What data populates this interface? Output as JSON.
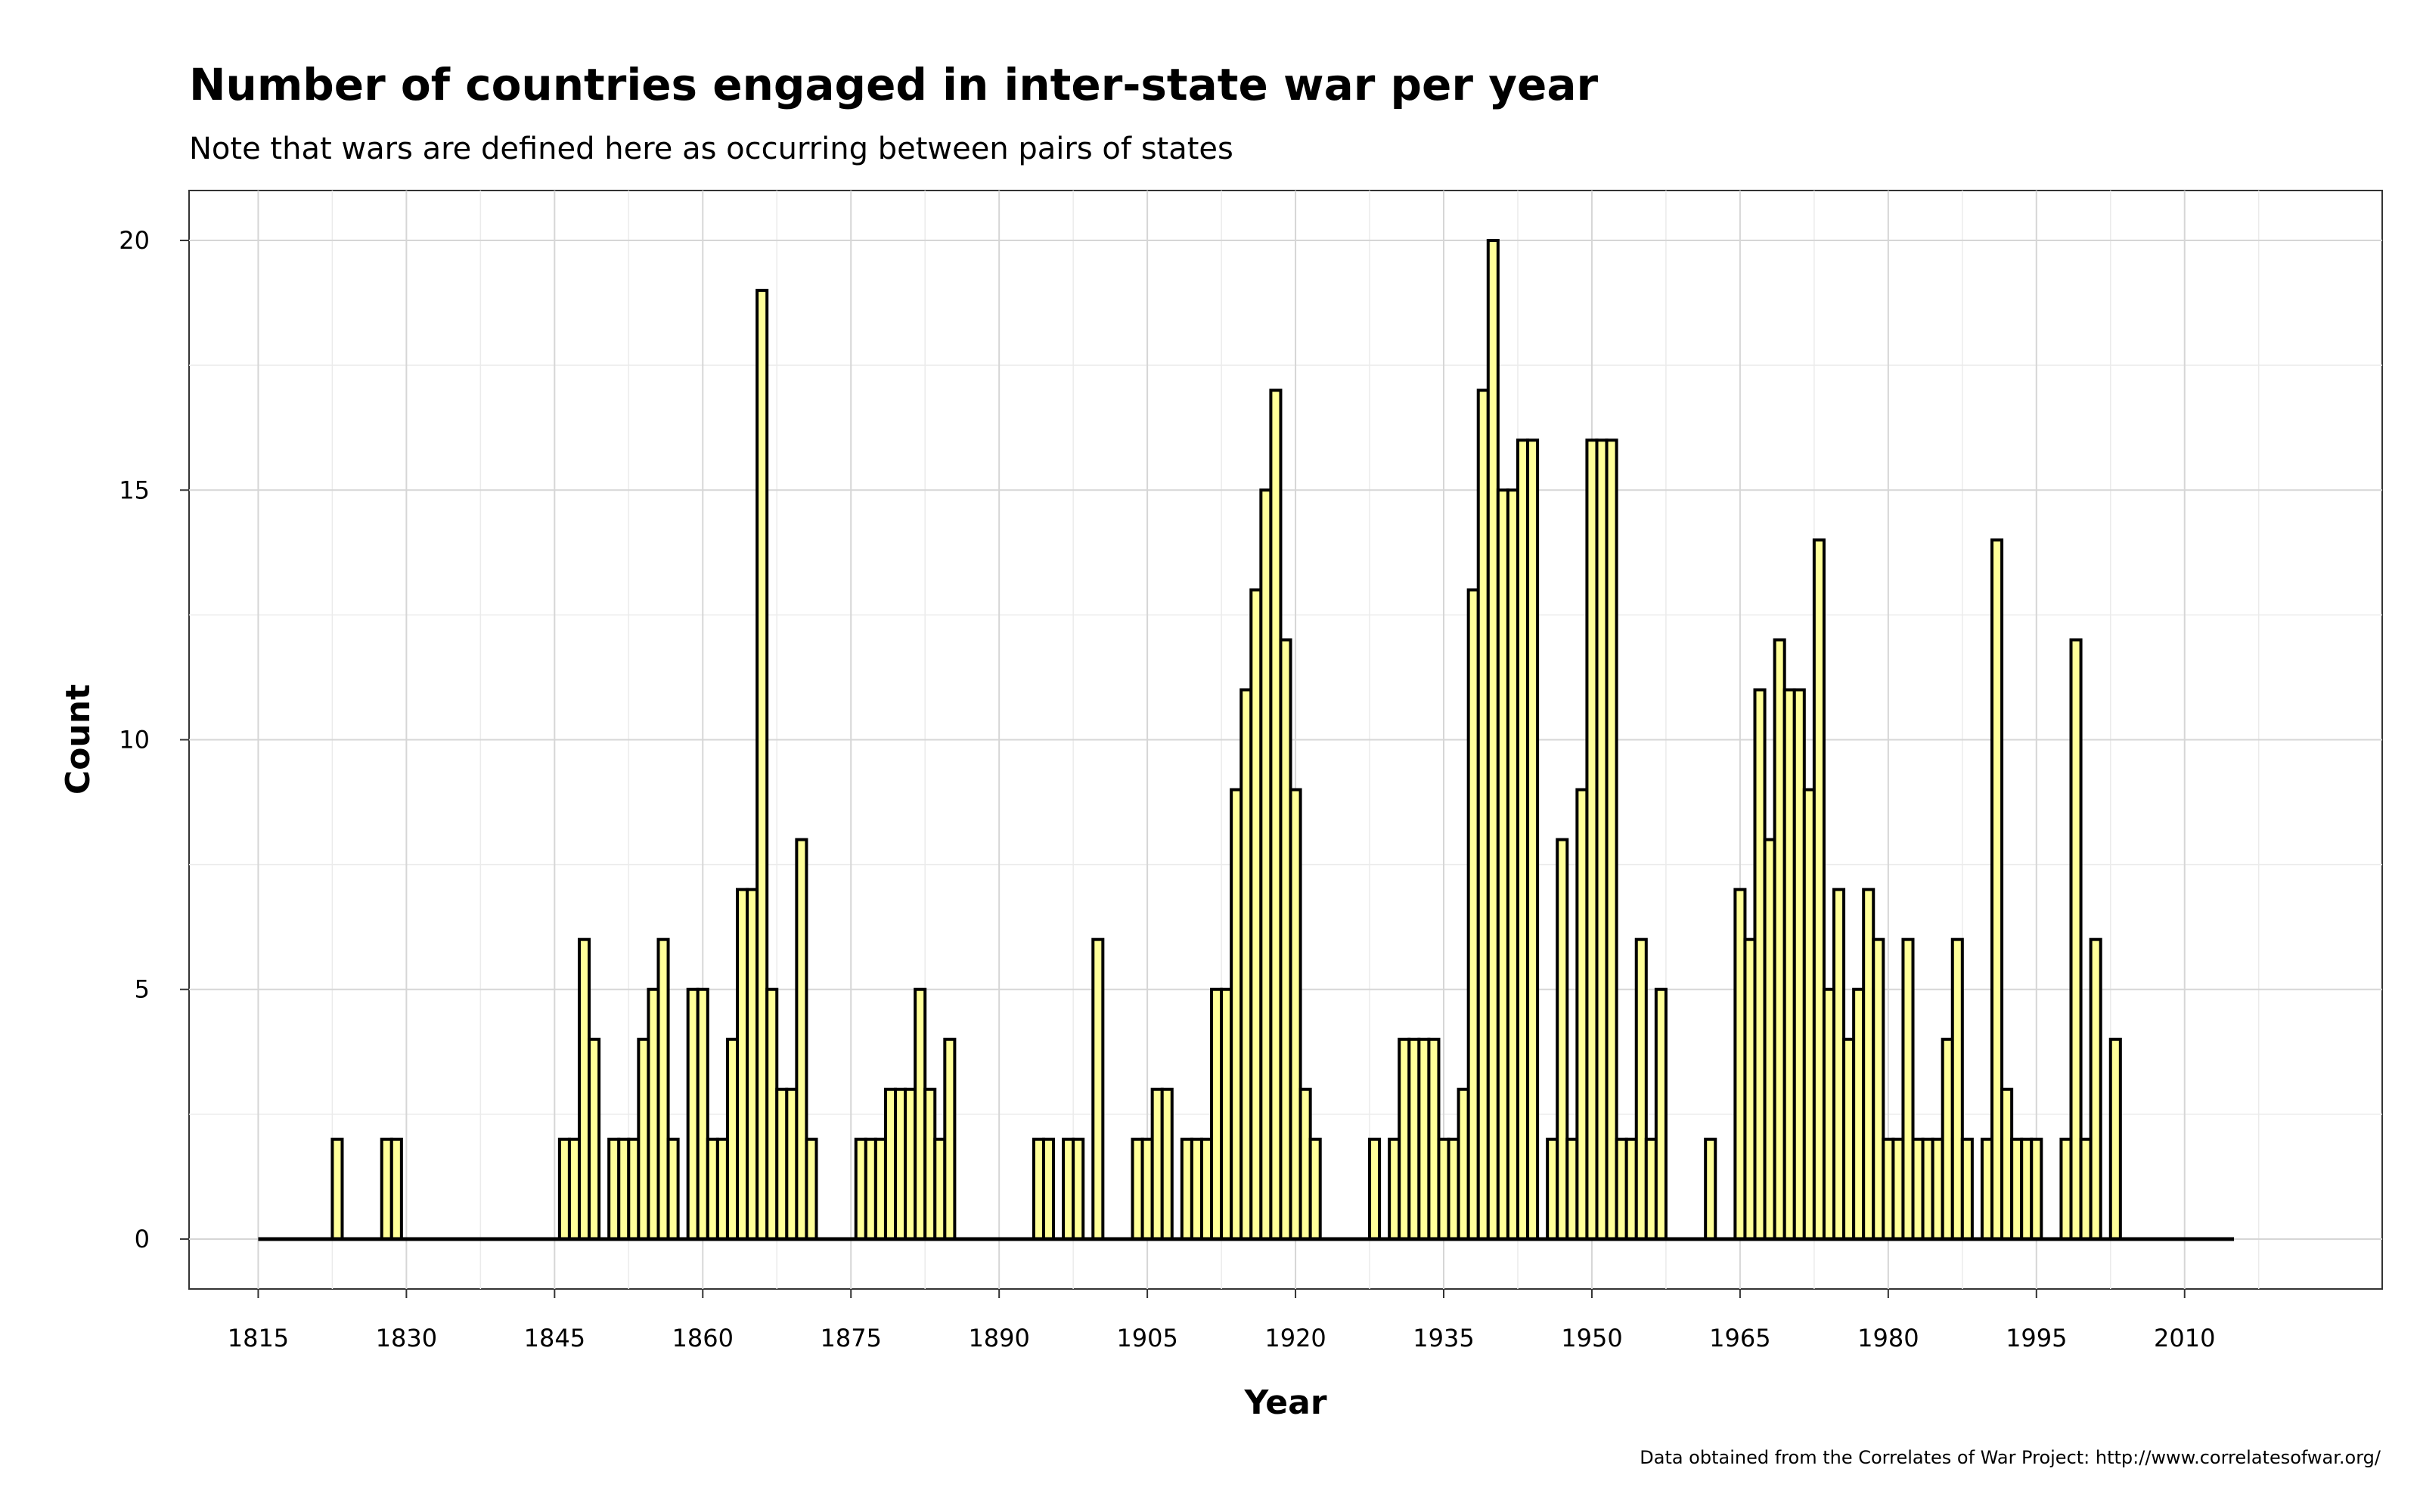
{
  "chart_data": {
    "type": "bar",
    "title": "Number of countries engaged in inter-state war per year",
    "subtitle": "Note that wars are defined here as occurring between pairs of states",
    "xlabel": "Year",
    "ylabel": "Count",
    "caption": "Data obtained from the Correlates of War Project: http://www.correlatesofwar.org/",
    "xlim": [
      1808,
      2030
    ],
    "ylim": [
      -1,
      21
    ],
    "x_ticks": [
      1815,
      1830,
      1845,
      1860,
      1875,
      1890,
      1905,
      1920,
      1935,
      1950,
      1965,
      1980,
      1995,
      2010
    ],
    "y_ticks": [
      0,
      5,
      10,
      15,
      20
    ],
    "bar_fill": "#ffff99",
    "bar_stroke": "#000000",
    "grid": true,
    "legend": "none",
    "x_start": 1815,
    "x_end": 2015,
    "values": {
      "1823": 2,
      "1828": 2,
      "1829": 2,
      "1846": 2,
      "1847": 2,
      "1848": 6,
      "1849": 4,
      "1851": 2,
      "1852": 2,
      "1853": 2,
      "1854": 4,
      "1855": 5,
      "1856": 6,
      "1857": 2,
      "1859": 5,
      "1860": 5,
      "1861": 2,
      "1862": 2,
      "1863": 4,
      "1864": 7,
      "1865": 7,
      "1866": 19,
      "1867": 5,
      "1868": 3,
      "1869": 3,
      "1870": 8,
      "1871": 2,
      "1876": 2,
      "1877": 2,
      "1878": 2,
      "1879": 3,
      "1880": 3,
      "1881": 3,
      "1882": 5,
      "1883": 3,
      "1884": 2,
      "1885": 4,
      "1894": 2,
      "1895": 2,
      "1897": 2,
      "1898": 2,
      "1900": 6,
      "1904": 2,
      "1905": 2,
      "1906": 3,
      "1907": 3,
      "1909": 2,
      "1910": 2,
      "1911": 2,
      "1912": 5,
      "1913": 5,
      "1914": 9,
      "1915": 11,
      "1916": 13,
      "1917": 15,
      "1918": 17,
      "1919": 12,
      "1920": 9,
      "1921": 3,
      "1922": 2,
      "1928": 2,
      "1930": 2,
      "1931": 4,
      "1932": 4,
      "1933": 4,
      "1934": 4,
      "1935": 2,
      "1936": 2,
      "1937": 3,
      "1938": 13,
      "1939": 17,
      "1940": 20,
      "1941": 15,
      "1942": 15,
      "1943": 16,
      "1944": 16,
      "1946": 2,
      "1947": 8,
      "1948": 2,
      "1949": 9,
      "1950": 16,
      "1951": 16,
      "1952": 16,
      "1953": 2,
      "1954": 2,
      "1955": 6,
      "1956": 2,
      "1957": 5,
      "1962": 2,
      "1965": 7,
      "1966": 6,
      "1967": 11,
      "1968": 8,
      "1969": 12,
      "1970": 11,
      "1971": 11,
      "1972": 9,
      "1973": 14,
      "1974": 5,
      "1975": 7,
      "1976": 4,
      "1977": 5,
      "1978": 7,
      "1979": 6,
      "1980": 2,
      "1981": 2,
      "1982": 6,
      "1983": 2,
      "1984": 2,
      "1985": 2,
      "1986": 4,
      "1987": 6,
      "1988": 2,
      "1990": 2,
      "1991": 14,
      "1992": 3,
      "1993": 2,
      "1994": 2,
      "1995": 2,
      "1998": 2,
      "1999": 12,
      "2000": 2,
      "2001": 6,
      "2003": 4
    }
  }
}
